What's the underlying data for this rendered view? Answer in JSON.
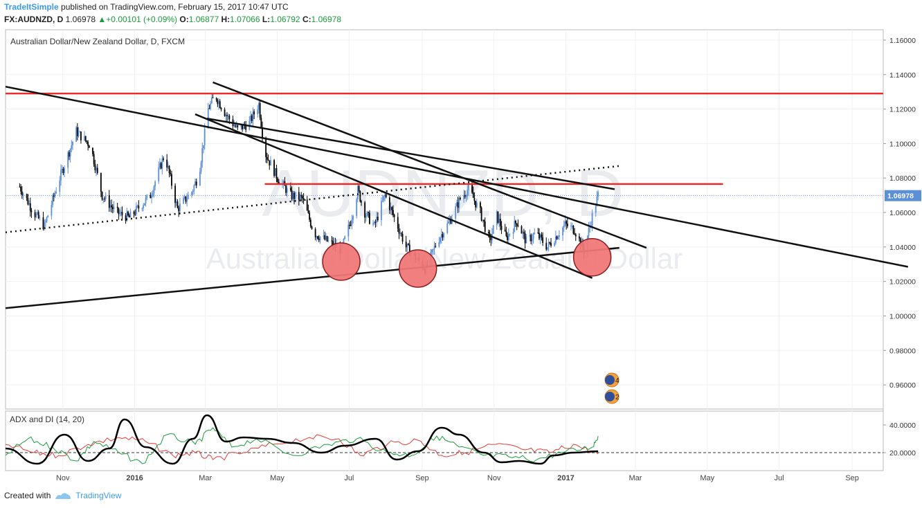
{
  "header": {
    "author": "TradeItSimple",
    "published": "published on TradingView.com, February 15, 2017 10:47 UTC",
    "symbol": "FX:AUDNZD, D",
    "last": "1.06978",
    "change": "+0.00101 (+0.09%)",
    "o_label": "O:",
    "o_val": "1.06877",
    "h_label": "H:",
    "h_val": "1.07066",
    "l_label": "L:",
    "l_val": "1.06792",
    "c_label": "C:",
    "c_val": "1.06978"
  },
  "footer": {
    "created_with": "Created with",
    "brand": "TradingView"
  },
  "chart_data": {
    "type": "candlestick",
    "title": "Australian Dollar/New Zealand Dollar, D, FXCM",
    "watermark_symbol": "AUDNZD, D",
    "watermark_name": "Australian Dollar/New Zealand Dollar",
    "current_price_label": "1.06978",
    "price_axis": {
      "ylim": [
        0.946,
        1.166
      ],
      "ticks": [
        "1.16000",
        "1.14000",
        "1.12000",
        "1.10000",
        "1.08000",
        "1.06000",
        "1.04000",
        "1.02000",
        "1.00000",
        "0.98000",
        "0.96000"
      ]
    },
    "time_axis": {
      "labels": [
        "Nov",
        "2016",
        "Mar",
        "May",
        "Jul",
        "Sep",
        "Nov",
        "2017",
        "Mar",
        "May",
        "Jul",
        "Sep"
      ],
      "bold_labels": [
        "2016",
        "2017"
      ]
    },
    "price_series": [
      [
        "2015-10-13",
        1.075
      ],
      [
        "2015-10-25",
        1.06
      ],
      [
        "2015-11-03",
        1.052
      ],
      [
        "2015-11-15",
        1.078
      ],
      [
        "2015-11-30",
        1.107
      ],
      [
        "2015-12-12",
        1.099
      ],
      [
        "2015-12-22",
        1.07
      ],
      [
        "2016-01-03",
        1.06
      ],
      [
        "2016-01-14",
        1.057
      ],
      [
        "2016-02-01",
        1.07
      ],
      [
        "2016-02-13",
        1.094
      ],
      [
        "2016-02-24",
        1.062
      ],
      [
        "2016-03-07",
        1.072
      ],
      [
        "2016-03-13",
        1.082
      ],
      [
        "2016-03-21",
        1.12
      ],
      [
        "2016-03-27",
        1.128
      ],
      [
        "2016-04-05",
        1.117
      ],
      [
        "2016-04-15",
        1.108
      ],
      [
        "2016-04-25",
        1.112
      ],
      [
        "2016-05-03",
        1.123
      ],
      [
        "2016-05-08",
        1.095
      ],
      [
        "2016-05-19",
        1.08
      ],
      [
        "2016-05-30",
        1.07
      ],
      [
        "2016-06-09",
        1.068
      ],
      [
        "2016-06-19",
        1.048
      ],
      [
        "2016-07-01",
        1.043
      ],
      [
        "2016-07-12",
        1.038
      ],
      [
        "2016-07-20",
        1.055
      ],
      [
        "2016-07-26",
        1.073
      ],
      [
        "2016-08-01",
        1.06
      ],
      [
        "2016-08-09",
        1.052
      ],
      [
        "2016-08-18",
        1.07
      ],
      [
        "2016-08-26",
        1.057
      ],
      [
        "2016-09-05",
        1.04
      ],
      [
        "2016-09-14",
        1.033
      ],
      [
        "2016-09-22",
        1.027
      ],
      [
        "2016-10-01",
        1.043
      ],
      [
        "2016-10-12",
        1.055
      ],
      [
        "2016-10-21",
        1.068
      ],
      [
        "2016-10-28",
        1.074
      ],
      [
        "2016-11-07",
        1.06
      ],
      [
        "2016-11-15",
        1.043
      ],
      [
        "2016-11-21",
        1.058
      ],
      [
        "2016-11-29",
        1.045
      ],
      [
        "2016-12-08",
        1.055
      ],
      [
        "2016-12-16",
        1.043
      ],
      [
        "2016-12-24",
        1.048
      ],
      [
        "2017-01-03",
        1.04
      ],
      [
        "2017-01-10",
        1.046
      ],
      [
        "2017-01-18",
        1.053
      ],
      [
        "2017-01-26",
        1.05
      ],
      [
        "2017-02-03",
        1.038
      ],
      [
        "2017-02-10",
        1.058
      ],
      [
        "2017-02-15",
        1.07
      ]
    ],
    "horizontal_lines": [
      {
        "price": 1.129,
        "from": "2015-10-01",
        "to": "2017-10-15",
        "color": "#e62e2e"
      },
      {
        "price": 1.0765,
        "from": "2016-05-08",
        "to": "2017-06-01",
        "color": "#e62e2e"
      }
    ],
    "trend_lines": [
      {
        "x1": "2015-10-01",
        "y1": 1.133,
        "x2": "2017-11-05",
        "y2": 1.0285,
        "style": "solid"
      },
      {
        "x1": "2016-03-20",
        "y1": 1.1145,
        "x2": "2017-03-01",
        "y2": 1.0735,
        "style": "solid"
      },
      {
        "x1": "2016-03-25",
        "y1": 1.1355,
        "x2": "2017-03-28",
        "y2": 1.0395,
        "style": "solid"
      },
      {
        "x1": "2016-03-10",
        "y1": 1.117,
        "x2": "2017-02-10",
        "y2": 1.022,
        "style": "solid"
      },
      {
        "x1": "2015-10-01",
        "y1": 1.0045,
        "x2": "2017-03-05",
        "y2": 1.0395,
        "style": "solid"
      },
      {
        "x1": "2015-10-01",
        "y1": 1.0485,
        "x2": "2017-03-05",
        "y2": 1.087,
        "style": "dotted"
      }
    ],
    "highlight_circles": [
      {
        "date": "2016-07-12",
        "price": 1.0315
      },
      {
        "date": "2016-09-15",
        "price": 1.0275
      },
      {
        "date": "2017-02-10",
        "price": 1.034
      }
    ],
    "event_markers": [
      {
        "label": "4"
      },
      {
        "label": "2"
      }
    ],
    "indicator": {
      "title": "ADX and DI (14, 20)",
      "ylim": [
        7,
        50
      ],
      "ticks": [
        "40.0000",
        "20.0000"
      ],
      "reference_level": 20,
      "series": [
        {
          "name": "ADX",
          "color": "#000000",
          "points": [
            [
              "2015-10-01",
              23
            ],
            [
              "2015-10-28",
              12
            ],
            [
              "2015-11-20",
              33
            ],
            [
              "2015-12-10",
              14
            ],
            [
              "2015-12-28",
              23
            ],
            [
              "2016-01-10",
              44
            ],
            [
              "2016-01-28",
              24
            ],
            [
              "2016-02-20",
              12
            ],
            [
              "2016-03-08",
              30
            ],
            [
              "2016-03-20",
              47
            ],
            [
              "2016-04-05",
              28
            ],
            [
              "2016-04-20",
              31
            ],
            [
              "2016-05-10",
              30
            ],
            [
              "2016-06-01",
              27
            ],
            [
              "2016-06-25",
              20
            ],
            [
              "2016-07-15",
              25
            ],
            [
              "2016-08-10",
              30
            ],
            [
              "2016-08-28",
              15
            ],
            [
              "2016-09-15",
              21
            ],
            [
              "2016-10-05",
              38
            ],
            [
              "2016-10-20",
              33
            ],
            [
              "2016-11-10",
              20
            ],
            [
              "2016-11-25",
              13
            ],
            [
              "2016-12-10",
              14
            ],
            [
              "2016-12-28",
              12
            ],
            [
              "2017-01-08",
              18
            ],
            [
              "2017-01-25",
              20
            ],
            [
              "2017-02-15",
              21
            ]
          ]
        },
        {
          "name": "+DI",
          "color": "#1a9c3c",
          "points": [
            [
              "2015-10-01",
              18
            ],
            [
              "2015-10-20",
              30
            ],
            [
              "2015-11-10",
              24
            ],
            [
              "2015-11-30",
              14
            ],
            [
              "2015-12-15",
              28
            ],
            [
              "2016-01-05",
              20
            ],
            [
              "2016-01-25",
              12
            ],
            [
              "2016-02-15",
              33
            ],
            [
              "2016-03-10",
              26
            ],
            [
              "2016-03-25",
              38
            ],
            [
              "2016-04-10",
              24
            ],
            [
              "2016-05-01",
              30
            ],
            [
              "2016-06-01",
              18
            ],
            [
              "2016-07-01",
              26
            ],
            [
              "2016-07-25",
              30
            ],
            [
              "2016-08-20",
              20
            ],
            [
              "2016-09-10",
              18
            ],
            [
              "2016-10-01",
              32
            ],
            [
              "2016-10-20",
              24
            ],
            [
              "2016-11-10",
              18
            ],
            [
              "2016-12-01",
              17
            ],
            [
              "2016-12-25",
              15
            ],
            [
              "2017-01-15",
              20
            ],
            [
              "2017-02-10",
              24
            ],
            [
              "2017-02-15",
              32
            ]
          ]
        },
        {
          "name": "-DI",
          "color": "#e63c3c",
          "points": [
            [
              "2015-10-01",
              26
            ],
            [
              "2015-10-25",
              20
            ],
            [
              "2015-11-15",
              18
            ],
            [
              "2015-12-10",
              26
            ],
            [
              "2016-01-05",
              31
            ],
            [
              "2016-01-28",
              28
            ],
            [
              "2016-02-20",
              18
            ],
            [
              "2016-03-10",
              20
            ],
            [
              "2016-03-25",
              15
            ],
            [
              "2016-04-20",
              20
            ],
            [
              "2016-05-15",
              26
            ],
            [
              "2016-06-15",
              31
            ],
            [
              "2016-07-10",
              30
            ],
            [
              "2016-07-28",
              18
            ],
            [
              "2016-08-20",
              26
            ],
            [
              "2016-09-15",
              29
            ],
            [
              "2016-10-05",
              18
            ],
            [
              "2016-10-25",
              20
            ],
            [
              "2016-11-20",
              26
            ],
            [
              "2016-12-15",
              22
            ],
            [
              "2017-01-05",
              20
            ],
            [
              "2017-01-25",
              26
            ],
            [
              "2017-02-15",
              19
            ]
          ]
        }
      ]
    }
  }
}
